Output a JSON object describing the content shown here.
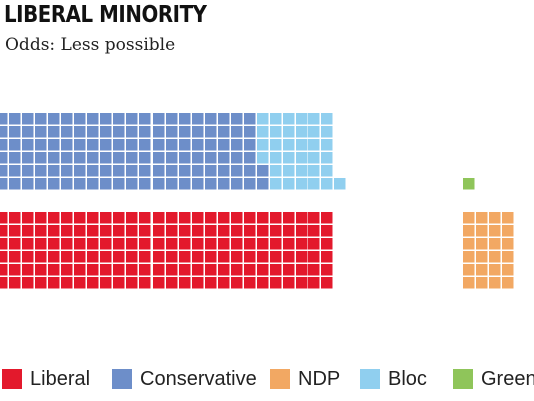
{
  "header": {
    "title": "LIBERAL MINORITY",
    "subtitle": "Odds: Less possible"
  },
  "chart_data": {
    "type": "waffle",
    "title": "LIBERAL MINORITY",
    "subtitle": "Odds: Less possible",
    "total_seats": 338,
    "series": [
      {
        "name": "Liberal",
        "value": 156,
        "color": "#e3192c"
      },
      {
        "name": "Conservative",
        "value": 122,
        "color": "#6d8ec9"
      },
      {
        "name": "NDP",
        "value": 24,
        "color": "#f2a863"
      },
      {
        "name": "Bloc",
        "value": 35,
        "color": "#90cfef"
      },
      {
        "name": "Green",
        "value": 1,
        "color": "#8fc55a"
      }
    ],
    "legend_position": "bottom"
  },
  "legend": [
    {
      "name": "Liberal",
      "color": "#e3192c"
    },
    {
      "name": "Conservative",
      "color": "#6d8ec9"
    },
    {
      "name": "NDP",
      "color": "#f2a863"
    },
    {
      "name": "Bloc",
      "color": "#90cfef"
    },
    {
      "name": "Green",
      "color": "#8fc55a"
    }
  ]
}
